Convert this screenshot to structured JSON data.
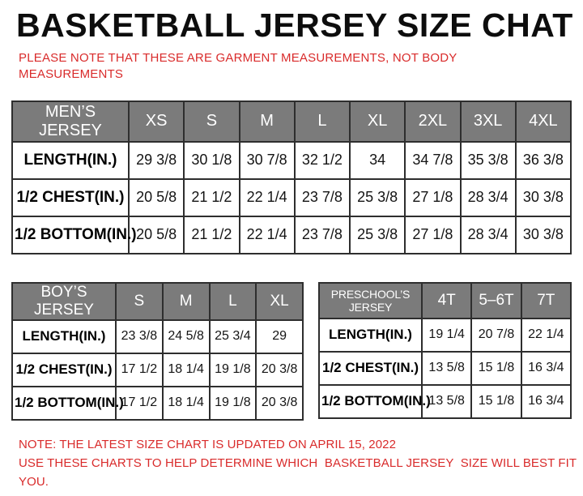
{
  "title": "BASKETBALL JERSEY SIZE CHAT",
  "top_note": "PLEASE NOTE THAT THESE ARE GARMENT MEASUREMENTS, NOT BODY MEASUREMENTS",
  "bottom_notes": [
    "NOTE: THE LATEST SIZE CHART IS UPDATED ON APRIL 15, 2022",
    "USE THESE CHARTS TO HELP DETERMINE WHICH  BASKETBALL JERSEY  SIZE WILL BEST FIT YOU."
  ],
  "colors": {
    "note_red": "#d92b2b",
    "header_gray": "#7b7b7b",
    "header_text": "#ffffff",
    "border": "#2e2e2e",
    "title_black": "#0d0d0d"
  },
  "chart_data": [
    {
      "type": "table",
      "title": "MEN’S JERSEY",
      "columns": [
        "XS",
        "S",
        "M",
        "L",
        "XL",
        "2XL",
        "3XL",
        "4XL"
      ],
      "rows": [
        {
          "label": "LENGTH(IN.)",
          "values": [
            "29 3/8",
            "30 1/8",
            "30 7/8",
            "32 1/2",
            "34",
            "34 7/8",
            "35 3/8",
            "36 3/8"
          ]
        },
        {
          "label": "1/2  CHEST(IN.)",
          "values": [
            "20 5/8",
            "21 1/2",
            "22 1/4",
            "23 7/8",
            "25 3/8",
            "27 1/8",
            "28 3/4",
            "30 3/8"
          ]
        },
        {
          "label": "1/2  BOTTOM(IN.)",
          "values": [
            "20 5/8",
            "21 1/2",
            "22 1/4",
            "23 7/8",
            "25 3/8",
            "27 1/8",
            "28 3/4",
            "30 3/8"
          ]
        }
      ]
    },
    {
      "type": "table",
      "title": "BOY’S JERSEY",
      "columns": [
        "S",
        "M",
        "L",
        "XL"
      ],
      "rows": [
        {
          "label": "LENGTH(IN.)",
          "values": [
            "23 3/8",
            "24 5/8",
            "25 3/4",
            "29"
          ]
        },
        {
          "label": "1/2  CHEST(IN.)",
          "values": [
            "17 1/2",
            "18 1/4",
            "19 1/8",
            "20 3/8"
          ]
        },
        {
          "label": "1/2  BOTTOM(IN.)",
          "values": [
            "17 1/2",
            "18 1/4",
            "19 1/8",
            "20 3/8"
          ]
        }
      ]
    },
    {
      "type": "table",
      "title": "PRESCHOOL’S JERSEY",
      "columns": [
        "4T",
        "5–6T",
        "7T"
      ],
      "rows": [
        {
          "label": "LENGTH(IN.)",
          "values": [
            "19 1/4",
            "20 7/8",
            "22 1/4"
          ]
        },
        {
          "label": "1/2  CHEST(IN.)",
          "values": [
            "13 5/8",
            "15 1/8",
            "16 3/4"
          ]
        },
        {
          "label": "1/2  BOTTOM(IN.)",
          "values": [
            "13 5/8",
            "15 1/8",
            "16 3/4"
          ]
        }
      ]
    }
  ]
}
